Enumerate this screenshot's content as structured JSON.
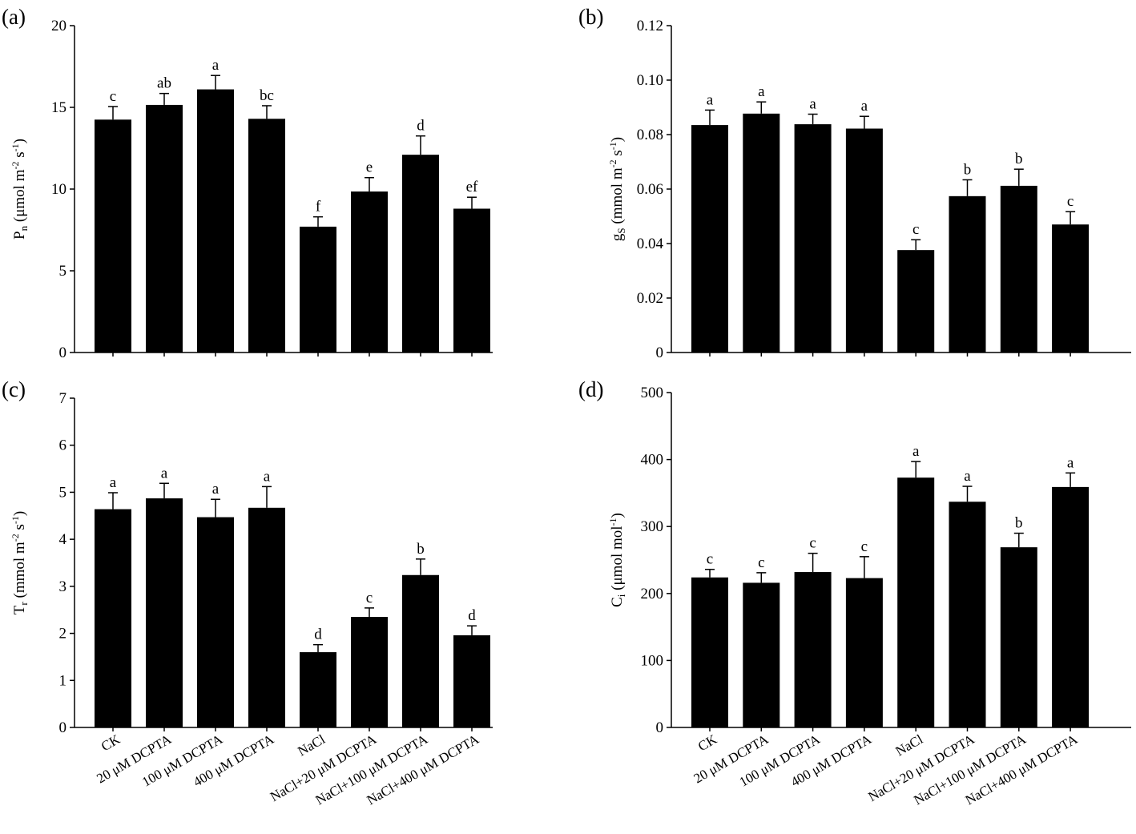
{
  "chart_data": [
    {
      "type": "bar",
      "panel_label": "(a)",
      "categories": [
        "CK",
        "20 μM DCPTA",
        "100 μM DCPTA",
        "400 μM DCPTA",
        "NaCl",
        "NaCl+20 μM DCPTA",
        "NaCl+100 μM DCPTA",
        "NaCl+400 μM DCPTA"
      ],
      "values": [
        14.25,
        15.15,
        16.1,
        14.3,
        7.7,
        9.85,
        12.1,
        8.8
      ],
      "errors": [
        0.8,
        0.7,
        0.85,
        0.8,
        0.6,
        0.85,
        1.15,
        0.7
      ],
      "letters": [
        "c",
        "ab",
        "a",
        "bc",
        "f",
        "e",
        "d",
        "ef"
      ],
      "ylabel": [
        {
          "t": "P"
        },
        {
          "t": "n",
          "sub": true
        },
        {
          "t": " (μmol m"
        },
        {
          "t": "-2",
          "sup": true
        },
        {
          "t": " s"
        },
        {
          "t": "-1",
          "sup": true
        },
        {
          "t": ")"
        }
      ],
      "ylim": [
        0,
        20
      ],
      "yticks": [
        "0",
        "5",
        "10",
        "15",
        "20"
      ],
      "show_xlabels": false
    },
    {
      "type": "bar",
      "panel_label": "(b)",
      "categories": [
        "CK",
        "20 μM DCPTA",
        "100 μM DCPTA",
        "400 μM DCPTA",
        "NaCl",
        "NaCl+20 μM DCPTA",
        "NaCl+100 μM DCPTA",
        "NaCl+400 μM DCPTA"
      ],
      "values": [
        0.0835,
        0.0877,
        0.0838,
        0.0822,
        0.0376,
        0.0574,
        0.0612,
        0.047
      ],
      "errors": [
        0.0055,
        0.0043,
        0.0037,
        0.0045,
        0.0038,
        0.006,
        0.0061,
        0.0047
      ],
      "letters": [
        "a",
        "a",
        "a",
        "a",
        "c",
        "b",
        "b",
        "c"
      ],
      "ylabel": [
        {
          "t": "g"
        },
        {
          "t": "S",
          "sub": true
        },
        {
          "t": " (mmol m"
        },
        {
          "t": "-2",
          "sup": true
        },
        {
          "t": " s"
        },
        {
          "t": "-1",
          "sup": true
        },
        {
          "t": ")"
        }
      ],
      "ylim": [
        0,
        0.12
      ],
      "yticks": [
        "0",
        "0.02",
        "0.04",
        "0.06",
        "0.08",
        "0.10",
        "0.12"
      ],
      "show_xlabels": false
    },
    {
      "type": "bar",
      "panel_label": "(c)",
      "categories": [
        "CK",
        "20 μM DCPTA",
        "100 μM DCPTA",
        "400 μM DCPTA",
        "NaCl",
        "NaCl+20 μM DCPTA",
        "NaCl+100 μM DCPTA",
        "NaCl+400 μM DCPTA"
      ],
      "values": [
        4.64,
        4.87,
        4.47,
        4.67,
        1.6,
        2.35,
        3.24,
        1.96
      ],
      "errors": [
        0.35,
        0.32,
        0.38,
        0.45,
        0.16,
        0.19,
        0.34,
        0.2
      ],
      "letters": [
        "a",
        "a",
        "a",
        "a",
        "d",
        "c",
        "b",
        "d"
      ],
      "ylabel": [
        {
          "t": "T"
        },
        {
          "t": "r",
          "sub": true
        },
        {
          "t": " (mmol m"
        },
        {
          "t": "-2",
          "sup": true
        },
        {
          "t": " s"
        },
        {
          "t": "-1",
          "sup": true
        },
        {
          "t": ")"
        }
      ],
      "ylim": [
        0,
        7
      ],
      "yticks": [
        "0",
        "1",
        "2",
        "3",
        "4",
        "5",
        "6",
        "7"
      ],
      "show_xlabels": true
    },
    {
      "type": "bar",
      "panel_label": "(d)",
      "categories": [
        "CK",
        "20 μM DCPTA",
        "100 μM DCPTA",
        "400 μM DCPTA",
        "NaCl",
        "NaCl+20 μM DCPTA",
        "NaCl+100 μM DCPTA",
        "NaCl+400 μM DCPTA"
      ],
      "values": [
        224,
        216,
        232,
        223,
        373,
        337,
        269,
        359
      ],
      "errors": [
        12,
        15,
        28,
        32,
        24,
        23,
        21,
        21
      ],
      "letters": [
        "c",
        "c",
        "c",
        "c",
        "a",
        "a",
        "b",
        "a"
      ],
      "ylabel": [
        {
          "t": "C"
        },
        {
          "t": "i",
          "sub": true
        },
        {
          "t": " (μmol mol"
        },
        {
          "t": "-1",
          "sup": true
        },
        {
          "t": ")"
        }
      ],
      "ylim": [
        0,
        500
      ],
      "yticks": [
        "0",
        "100",
        "200",
        "300",
        "400",
        "500"
      ],
      "show_xlabels": true
    }
  ]
}
